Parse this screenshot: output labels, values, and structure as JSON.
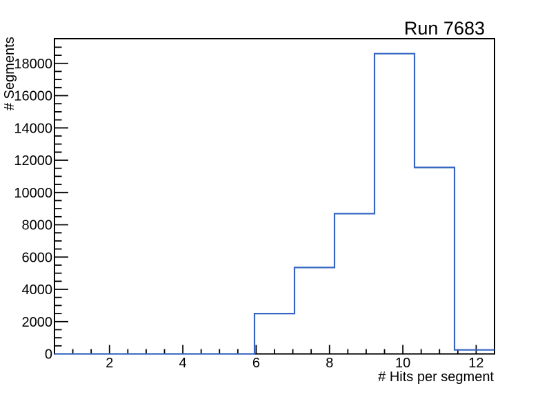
{
  "window": {
    "background": "#ffffff"
  },
  "chart_data": {
    "type": "bar",
    "style": "step-histogram-outline",
    "title": "Run 7683",
    "xlabel": "# Hits per segment",
    "ylabel": "# Segments",
    "xlim": [
      0.5,
      12.5
    ],
    "ylim": [
      0,
      19530
    ],
    "bin_edges": [
      0.5,
      1.591,
      2.682,
      3.773,
      4.864,
      5.955,
      7.045,
      8.136,
      9.227,
      10.318,
      11.409,
      12.5
    ],
    "counts": [
      0,
      0,
      0,
      0,
      0,
      2500,
      5350,
      8690,
      18600,
      11550,
      250
    ],
    "x_major_ticks": [
      2,
      4,
      6,
      8,
      10,
      12
    ],
    "x_minor_step": 0.5,
    "y_major_ticks": [
      0,
      2000,
      4000,
      6000,
      8000,
      10000,
      12000,
      14000,
      16000,
      18000
    ],
    "y_minor_step": 500,
    "grid": "off",
    "legend": "none",
    "line_color": "#3565c0",
    "frame_color": "#000000",
    "text_color": "#000000",
    "background": "#ffffff"
  }
}
